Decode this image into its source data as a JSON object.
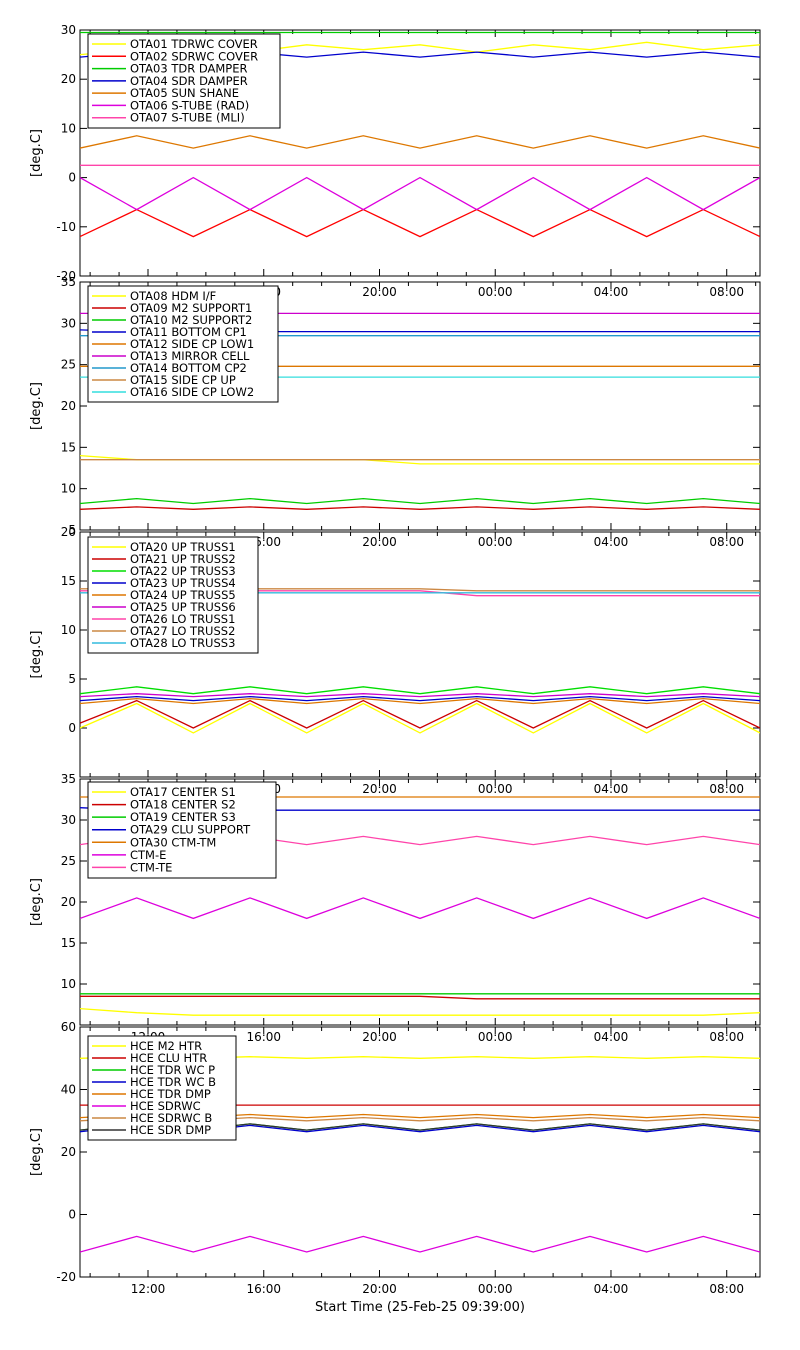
{
  "figure": {
    "xlabel": "Start Time (25-Feb-25 09:39:00)",
    "x_tick_labels": [
      "12:00",
      "16:00",
      "20:00",
      "00:00",
      "04:00",
      "08:00"
    ]
  },
  "chart_data": [
    {
      "type": "line",
      "ylabel": "[deg.C]",
      "ylim": [
        -20,
        30
      ],
      "yticks": [
        -20,
        -10,
        0,
        10,
        20,
        30
      ],
      "show_x_tick_labels": false,
      "legend": "top-left",
      "x": [
        0,
        2,
        4,
        6,
        8,
        10,
        12,
        14,
        16,
        18,
        20,
        22,
        24
      ],
      "series": [
        {
          "name": "OTA01 TDRWC COVER",
          "color": "#ffff00",
          "values": [
            25,
            26,
            27,
            25.5,
            27,
            26,
            27,
            25.5,
            27,
            26,
            27.5,
            26,
            27
          ]
        },
        {
          "name": "OTA02 SDRWC COVER",
          "color": "#ff0000",
          "values": [
            -12,
            -6.5,
            -12,
            -6.5,
            -12,
            -6.5,
            -12,
            -6.5,
            -12,
            -6.5,
            -12,
            -6.5,
            -12
          ]
        },
        {
          "name": "OTA03 TDR DAMPER",
          "color": "#00cc00",
          "values": [
            29.5,
            29.5,
            29.5,
            29.5,
            29.5,
            29.5,
            29.5,
            29.5,
            29.5,
            29.5,
            29.5,
            29.5,
            29.5
          ]
        },
        {
          "name": "OTA04 SDR DAMPER",
          "color": "#0000cc",
          "values": [
            24.5,
            25.5,
            24.5,
            25.5,
            24.5,
            25.5,
            24.5,
            25.5,
            24.5,
            25.5,
            24.5,
            25.5,
            24.5
          ]
        },
        {
          "name": "OTA05 SUN SHANE",
          "color": "#dd7700",
          "values": [
            6,
            8.5,
            6,
            8.5,
            6,
            8.5,
            6,
            8.5,
            6,
            8.5,
            6,
            8.5,
            6
          ]
        },
        {
          "name": "OTA06 S-TUBE (RAD)",
          "color": "#dd00dd",
          "values": [
            0,
            -6.5,
            0,
            -6.5,
            0,
            -6.5,
            0,
            -6.5,
            0,
            -6.5,
            0,
            -6.5,
            0
          ]
        },
        {
          "name": "OTA07 S-TUBE (MLI)",
          "color": "#ff44aa",
          "values": [
            2.5,
            2.5,
            2.5,
            2.5,
            2.5,
            2.5,
            2.5,
            2.5,
            2.5,
            2.5,
            2.5,
            2.5,
            2.5
          ]
        }
      ]
    },
    {
      "type": "line",
      "ylabel": "[deg.C]",
      "ylim": [
        5,
        35
      ],
      "yticks": [
        5,
        10,
        15,
        20,
        25,
        30,
        35
      ],
      "show_x_tick_labels": true,
      "legend": "top-left",
      "x": [
        0,
        2,
        4,
        6,
        8,
        10,
        12,
        14,
        16,
        18,
        20,
        22,
        24
      ],
      "series": [
        {
          "name": "OTA08 HDM I/F",
          "color": "#ffff00",
          "values": [
            14,
            13.5,
            13.5,
            13.5,
            13.5,
            13.5,
            13,
            13,
            13,
            13,
            13,
            13,
            13
          ]
        },
        {
          "name": "OTA09 M2 SUPPORT1",
          "color": "#cc0000",
          "values": [
            7.5,
            7.8,
            7.5,
            7.8,
            7.5,
            7.8,
            7.5,
            7.8,
            7.5,
            7.8,
            7.5,
            7.8,
            7.5
          ]
        },
        {
          "name": "OTA10 M2 SUPPORT2",
          "color": "#00cc00",
          "values": [
            8.2,
            8.8,
            8.2,
            8.8,
            8.2,
            8.8,
            8.2,
            8.8,
            8.2,
            8.8,
            8.2,
            8.8,
            8.2
          ]
        },
        {
          "name": "OTA11 BOTTOM CP1",
          "color": "#0000cc",
          "values": [
            29.2,
            29,
            29,
            29,
            29,
            29,
            29,
            29,
            29,
            29,
            29,
            29,
            29
          ]
        },
        {
          "name": "OTA12 SIDE CP LOW1",
          "color": "#dd7700",
          "values": [
            24.8,
            24.8,
            24.8,
            24.8,
            24.8,
            24.8,
            24.8,
            24.8,
            24.8,
            24.8,
            24.8,
            24.8,
            24.8
          ]
        },
        {
          "name": "OTA13 MIRROR CELL",
          "color": "#cc00cc",
          "values": [
            31.2,
            31.2,
            31.2,
            31.2,
            31.2,
            31.2,
            31.2,
            31.2,
            31.2,
            31.2,
            31.2,
            31.2,
            31.2
          ]
        },
        {
          "name": "OTA14 BOTTOM CP2",
          "color": "#2299cc",
          "values": [
            28.5,
            28.5,
            28.5,
            28.5,
            28.5,
            28.5,
            28.5,
            28.5,
            28.5,
            28.5,
            28.5,
            28.5,
            28.5
          ]
        },
        {
          "name": "OTA15 SIDE CP UP",
          "color": "#cc8844",
          "values": [
            13.5,
            13.5,
            13.5,
            13.5,
            13.5,
            13.5,
            13.5,
            13.5,
            13.5,
            13.5,
            13.5,
            13.5,
            13.5
          ]
        },
        {
          "name": "OTA16 SIDE CP LOW2",
          "color": "#33dddd",
          "values": [
            23.5,
            23.5,
            23.5,
            23.5,
            23.5,
            23.5,
            23.5,
            23.5,
            23.5,
            23.5,
            23.5,
            23.5,
            23.5
          ]
        }
      ]
    },
    {
      "type": "line",
      "ylabel": "[deg.C]",
      "ylim": [
        -5,
        20
      ],
      "yticks": [
        0,
        5,
        10,
        15,
        20
      ],
      "show_x_tick_labels": true,
      "legend": "top-left",
      "x": [
        0,
        2,
        4,
        6,
        8,
        10,
        12,
        14,
        16,
        18,
        20,
        22,
        24
      ],
      "series": [
        {
          "name": "OTA20 UP TRUSS1",
          "color": "#ffff00",
          "values": [
            0,
            2.5,
            -0.5,
            2.5,
            -0.5,
            2.5,
            -0.5,
            2.5,
            -0.5,
            2.5,
            -0.5,
            2.5,
            -0.5
          ]
        },
        {
          "name": "OTA21 UP TRUSS2",
          "color": "#cc0000",
          "values": [
            0.5,
            2.8,
            0,
            2.8,
            0,
            2.8,
            0,
            2.8,
            0,
            2.8,
            0,
            2.8,
            0
          ]
        },
        {
          "name": "OTA22 UP TRUSS3",
          "color": "#00dd00",
          "values": [
            3.5,
            4.2,
            3.5,
            4.2,
            3.5,
            4.2,
            3.5,
            4.2,
            3.5,
            4.2,
            3.5,
            4.2,
            3.5
          ]
        },
        {
          "name": "OTA23 UP TRUSS4",
          "color": "#0000cc",
          "values": [
            2.8,
            3.2,
            2.8,
            3.2,
            2.8,
            3.2,
            2.8,
            3.2,
            2.8,
            3.2,
            2.8,
            3.2,
            2.8
          ]
        },
        {
          "name": "OTA24 UP TRUSS5",
          "color": "#dd7700",
          "values": [
            2.5,
            3,
            2.5,
            3,
            2.5,
            3,
            2.5,
            3,
            2.5,
            3,
            2.5,
            3,
            2.5
          ]
        },
        {
          "name": "OTA25 UP TRUSS6",
          "color": "#cc00cc",
          "values": [
            3.2,
            3.5,
            3.2,
            3.5,
            3.2,
            3.5,
            3.2,
            3.5,
            3.2,
            3.5,
            3.2,
            3.5,
            3.2
          ]
        },
        {
          "name": "OTA26 LO TRUSS1",
          "color": "#ff44aa",
          "values": [
            14,
            14,
            14,
            14,
            14,
            14,
            14,
            13.5,
            13.5,
            13.5,
            13.5,
            13.5,
            13.5
          ]
        },
        {
          "name": "OTA27 LO TRUSS2",
          "color": "#cc8844",
          "values": [
            14.2,
            14.2,
            14.2,
            14.2,
            14.2,
            14.2,
            14.2,
            14,
            14,
            14,
            14,
            14,
            14
          ]
        },
        {
          "name": "OTA28 LO TRUSS3",
          "color": "#33bbdd",
          "values": [
            13.8,
            13.8,
            13.8,
            13.8,
            13.8,
            13.8,
            13.8,
            13.8,
            13.8,
            13.8,
            13.8,
            13.8,
            13.8
          ]
        }
      ]
    },
    {
      "type": "line",
      "ylabel": "[deg.C]",
      "ylim": [
        5,
        35
      ],
      "yticks": [
        10,
        15,
        20,
        25,
        30,
        35
      ],
      "show_x_tick_labels": true,
      "legend": "top-left",
      "x": [
        0,
        2,
        4,
        6,
        8,
        10,
        12,
        14,
        16,
        18,
        20,
        22,
        24
      ],
      "series": [
        {
          "name": "OTA17 CENTER S1",
          "color": "#ffff00",
          "values": [
            7,
            6.5,
            6.2,
            6.2,
            6.2,
            6.2,
            6.2,
            6.2,
            6.2,
            6.2,
            6.2,
            6.2,
            6.5
          ]
        },
        {
          "name": "OTA18 CENTER S2",
          "color": "#cc0000",
          "values": [
            8.5,
            8.5,
            8.5,
            8.5,
            8.5,
            8.5,
            8.5,
            8.2,
            8.2,
            8.2,
            8.2,
            8.2,
            8.2
          ]
        },
        {
          "name": "OTA19 CENTER S3",
          "color": "#00cc00",
          "values": [
            8.8,
            8.8,
            8.8,
            8.8,
            8.8,
            8.8,
            8.8,
            8.8,
            8.8,
            8.8,
            8.8,
            8.8,
            8.8
          ]
        },
        {
          "name": "OTA29 CLU SUPPORT",
          "color": "#0000cc",
          "values": [
            31.5,
            31.2,
            31.2,
            31.2,
            31.2,
            31.2,
            31.2,
            31.2,
            31.2,
            31.2,
            31.2,
            31.2,
            31.2
          ]
        },
        {
          "name": "OTA30 CTM-TM",
          "color": "#dd7700",
          "values": [
            32.8,
            32.8,
            32.8,
            32.8,
            32.8,
            32.8,
            32.8,
            32.8,
            32.8,
            32.8,
            32.8,
            32.8,
            32.8
          ]
        },
        {
          "name": "CTM-E",
          "color": "#dd00dd",
          "values": [
            18,
            20.5,
            18,
            20.5,
            18,
            20.5,
            18,
            20.5,
            18,
            20.5,
            18,
            20.5,
            18
          ]
        },
        {
          "name": "CTM-TE",
          "color": "#ff44aa",
          "values": [
            27,
            28,
            27,
            28,
            27,
            28,
            27,
            28,
            27,
            28,
            27,
            28,
            27
          ]
        }
      ]
    },
    {
      "type": "line",
      "ylabel": "[deg.C]",
      "ylim": [
        -20,
        60
      ],
      "yticks": [
        -20,
        0,
        20,
        40,
        60
      ],
      "show_x_tick_labels": true,
      "legend": "top-left",
      "x": [
        0,
        2,
        4,
        6,
        8,
        10,
        12,
        14,
        16,
        18,
        20,
        22,
        24
      ],
      "series": [
        {
          "name": "HCE M2 HTR",
          "color": "#ffff00",
          "values": [
            50,
            50.5,
            50,
            50.5,
            50,
            50.5,
            50,
            50.5,
            50,
            50.5,
            50,
            50.5,
            50
          ]
        },
        {
          "name": "HCE CLU HTR",
          "color": "#cc0000",
          "values": [
            35,
            35,
            35,
            35,
            35,
            35,
            35,
            35,
            35,
            35,
            35,
            35,
            35
          ]
        },
        {
          "name": "HCE TDR WC P",
          "color": "#00cc00",
          "values": [
            27,
            29,
            27,
            29,
            27,
            29,
            27,
            29,
            27,
            29,
            27,
            29,
            27
          ]
        },
        {
          "name": "HCE TDR WC B",
          "color": "#0000cc",
          "values": [
            26.5,
            28.5,
            26.5,
            28.5,
            26.5,
            28.5,
            26.5,
            28.5,
            26.5,
            28.5,
            26.5,
            28.5,
            26.5
          ]
        },
        {
          "name": "HCE TDR DMP",
          "color": "#dd7700",
          "values": [
            31,
            32,
            31,
            32,
            31,
            32,
            31,
            32,
            31,
            32,
            31,
            32,
            31
          ]
        },
        {
          "name": "HCE SDRWC",
          "color": "#dd00dd",
          "values": [
            -12,
            -7,
            -12,
            -7,
            -12,
            -7,
            -12,
            -7,
            -12,
            -7,
            -12,
            -7,
            -12
          ]
        },
        {
          "name": "HCE SDRWC B",
          "color": "#cc8844",
          "values": [
            30,
            31,
            30,
            31,
            30,
            31,
            30,
            31,
            30,
            31,
            30,
            31,
            30
          ]
        },
        {
          "name": "HCE SDR DMP",
          "color": "#333333",
          "values": [
            27,
            29,
            27,
            29,
            27,
            29,
            27,
            29,
            27,
            29,
            27,
            29,
            27
          ]
        }
      ]
    }
  ]
}
